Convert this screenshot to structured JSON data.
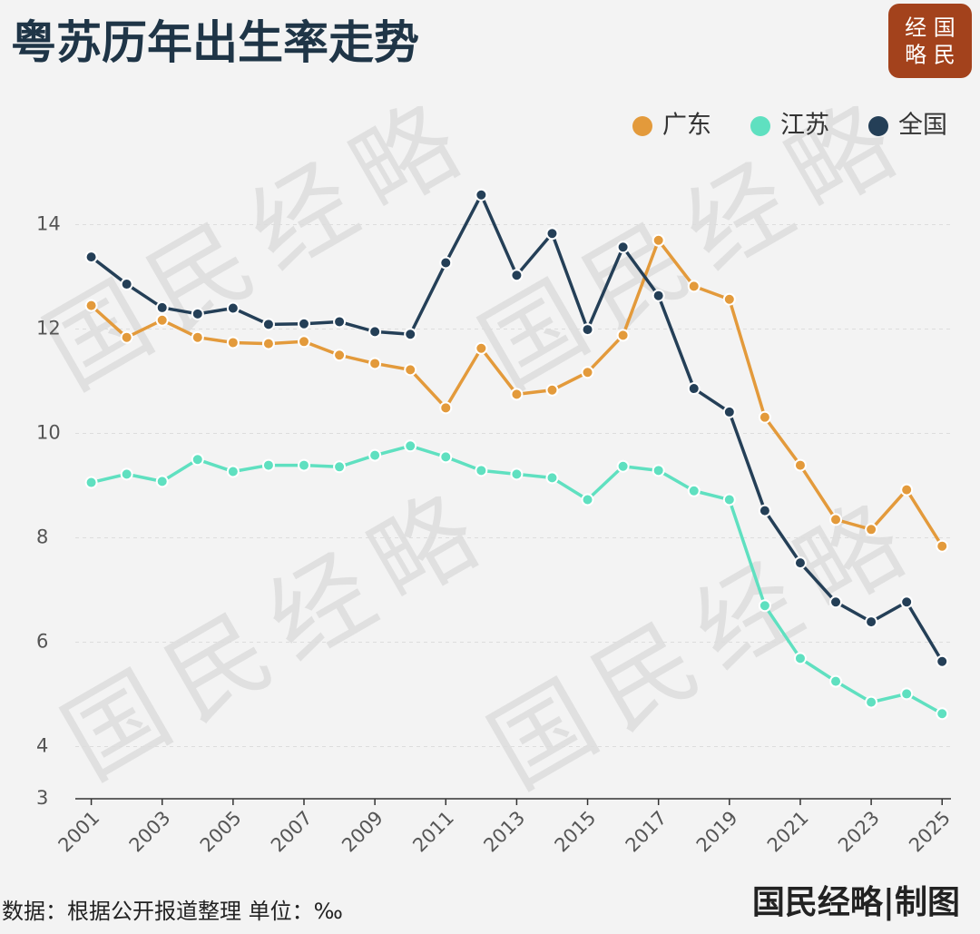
{
  "logo": {
    "row1": "经 国",
    "row2": "略 民"
  },
  "watermark": "国民经略",
  "footer": {
    "source": "数据：根据公开报道整理  单位：‰",
    "credit": "国民经略|制图"
  },
  "chart_data": {
    "type": "line",
    "title": "粤苏历年出生率走势",
    "x": [
      2001,
      2002,
      2003,
      2004,
      2005,
      2006,
      2007,
      2008,
      2009,
      2010,
      2011,
      2012,
      2013,
      2014,
      2015,
      2016,
      2017,
      2018,
      2019,
      2020,
      2021,
      2022,
      2023,
      2024,
      2025
    ],
    "series": [
      {
        "name": "广东",
        "color": "#e39a3b",
        "values": [
          12.45,
          11.84,
          12.17,
          11.84,
          11.74,
          11.72,
          11.76,
          11.5,
          11.34,
          11.22,
          10.49,
          11.63,
          10.75,
          10.83,
          11.17,
          11.88,
          13.7,
          12.82,
          12.57,
          10.31,
          9.39,
          8.35,
          8.16,
          8.92,
          7.84
        ]
      },
      {
        "name": "江苏",
        "color": "#5fe0c0",
        "values": [
          9.06,
          9.22,
          9.08,
          9.5,
          9.27,
          9.39,
          9.39,
          9.36,
          9.58,
          9.76,
          9.55,
          9.29,
          9.22,
          9.15,
          8.73,
          9.37,
          9.29,
          8.9,
          8.73,
          6.7,
          5.69,
          5.25,
          4.85,
          5.01,
          4.63
        ]
      },
      {
        "name": "全国",
        "color": "#243f57",
        "values": [
          13.38,
          12.86,
          12.41,
          12.29,
          12.4,
          12.09,
          12.1,
          12.14,
          11.95,
          11.9,
          13.27,
          14.57,
          13.03,
          13.83,
          11.99,
          13.57,
          12.64,
          10.86,
          10.41,
          8.52,
          7.52,
          6.77,
          6.39,
          6.77,
          5.63
        ]
      }
    ],
    "xlim": [
      2000.55,
      2025.25
    ],
    "xticks": [
      2001,
      2003,
      2005,
      2007,
      2009,
      2011,
      2013,
      2015,
      2017,
      2019,
      2021,
      2023,
      2025
    ],
    "ylim": [
      3,
      15
    ],
    "yticks": [
      3,
      4,
      6,
      8,
      10,
      12,
      14
    ],
    "grid": true,
    "legend": "top-right"
  }
}
